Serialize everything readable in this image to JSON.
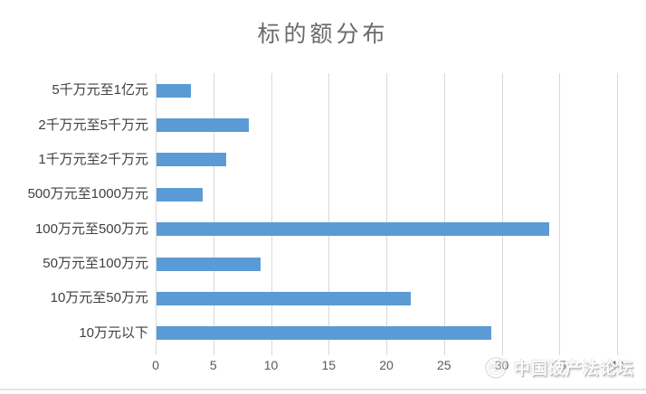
{
  "chart_data": {
    "type": "bar",
    "orientation": "horizontal",
    "title": "标的额分布",
    "categories": [
      "5千万元至1亿元",
      "2千万元至5千万元",
      "1千万元至2千万元",
      "500万元至1000万元",
      "100万元至500万元",
      "50万元至100万元",
      "10万元至50万元",
      "10万元以下"
    ],
    "values": [
      3,
      8,
      6,
      4,
      34,
      9,
      22,
      29
    ],
    "xlabel": "",
    "ylabel": "",
    "xlim": [
      0,
      40
    ],
    "x_ticks": [
      0,
      5,
      10,
      15,
      20,
      25,
      30,
      35,
      40
    ],
    "grid": true,
    "legend": "none",
    "category_order_note": "listed top-to-bottom as displayed"
  },
  "colors": {
    "bar": "#5B9BD5",
    "gridline": "#d9d9d9",
    "axis_line": "#d9d9d9",
    "category_label": "#404040",
    "tick_label": "#595959",
    "title": "#6a6a6a"
  },
  "watermark": {
    "text": "中国破产法论坛",
    "icon": "forum-seal-icon"
  }
}
